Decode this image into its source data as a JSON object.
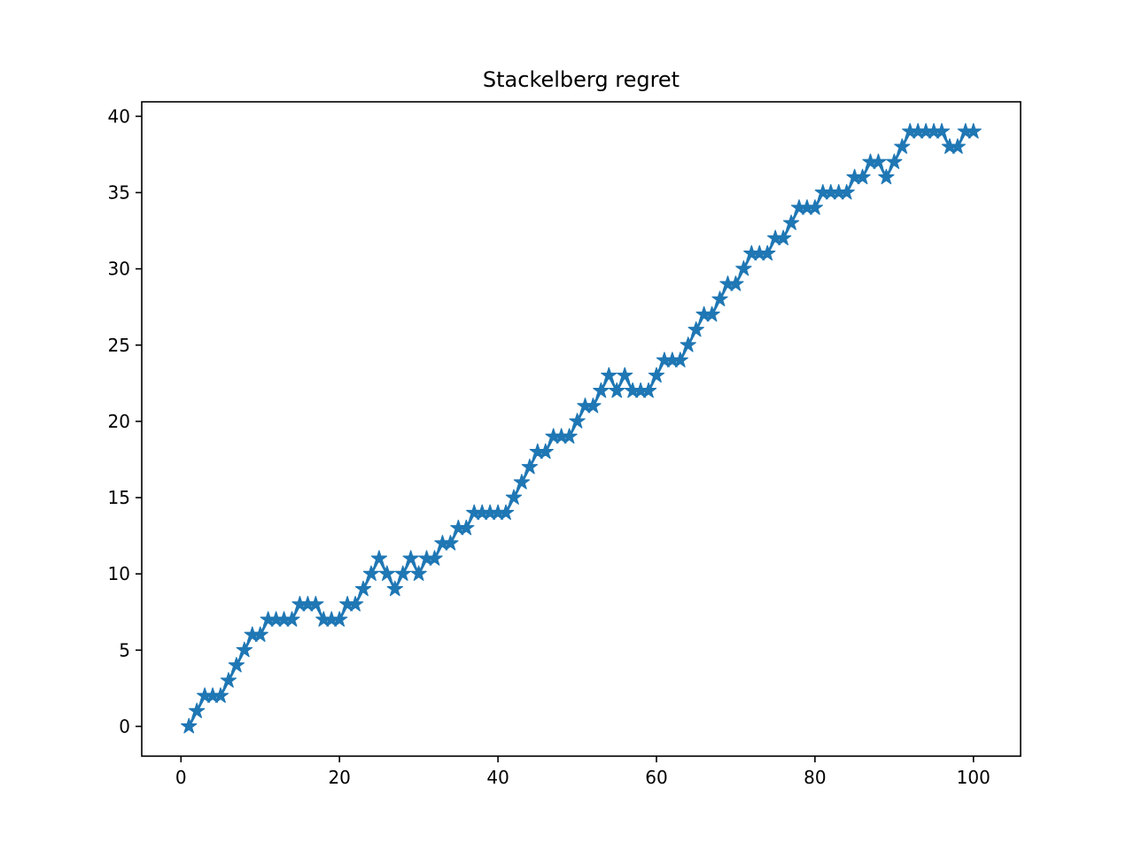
{
  "chart_data": {
    "type": "line",
    "title": "Stackelberg regret",
    "xlabel": "",
    "ylabel": "",
    "xlim": [
      -4.95,
      105.95
    ],
    "ylim": [
      -1.95,
      40.95
    ],
    "xticks": [
      0,
      20,
      40,
      60,
      80,
      100
    ],
    "yticks": [
      0,
      5,
      10,
      15,
      20,
      25,
      30,
      35,
      40
    ],
    "grid": false,
    "legend": "none",
    "marker": "star",
    "color": "#1f77b4",
    "series": [
      {
        "x": [
          1,
          2,
          3,
          4,
          5,
          6,
          7,
          8,
          9,
          10,
          11,
          12,
          13,
          14,
          15,
          16,
          17,
          18,
          19,
          20,
          21,
          22,
          23,
          24,
          25,
          26,
          27,
          28,
          29,
          30,
          31,
          32,
          33,
          34,
          35,
          36,
          37,
          38,
          39,
          40,
          41,
          42,
          43,
          44,
          45,
          46,
          47,
          48,
          49,
          50,
          51,
          52,
          53,
          54,
          55,
          56,
          57,
          58,
          59,
          60,
          61,
          62,
          63,
          64,
          65,
          66,
          67,
          68,
          69,
          70,
          71,
          72,
          73,
          74,
          75,
          76,
          77,
          78,
          79,
          80,
          81,
          82,
          83,
          84,
          85,
          86,
          87,
          88,
          89,
          90,
          91,
          92,
          93,
          94,
          95,
          96,
          97,
          98,
          99,
          100
        ],
        "values": [
          0,
          1,
          2,
          2,
          2,
          3,
          4,
          5,
          6,
          6,
          7,
          7,
          7,
          7,
          8,
          8,
          8,
          7,
          7,
          7,
          8,
          8,
          9,
          10,
          11,
          10,
          9,
          10,
          11,
          10,
          11,
          11,
          12,
          12,
          13,
          13,
          14,
          14,
          14,
          14,
          14,
          15,
          16,
          17,
          18,
          18,
          19,
          19,
          19,
          20,
          21,
          21,
          22,
          23,
          22,
          23,
          22,
          22,
          22,
          23,
          24,
          24,
          24,
          25,
          26,
          27,
          27,
          28,
          29,
          29,
          30,
          31,
          31,
          31,
          32,
          32,
          33,
          34,
          34,
          34,
          35,
          35,
          35,
          35,
          36,
          36,
          37,
          37,
          36,
          37,
          38,
          39,
          39,
          39,
          39,
          39,
          38,
          38,
          39,
          39
        ]
      }
    ]
  }
}
